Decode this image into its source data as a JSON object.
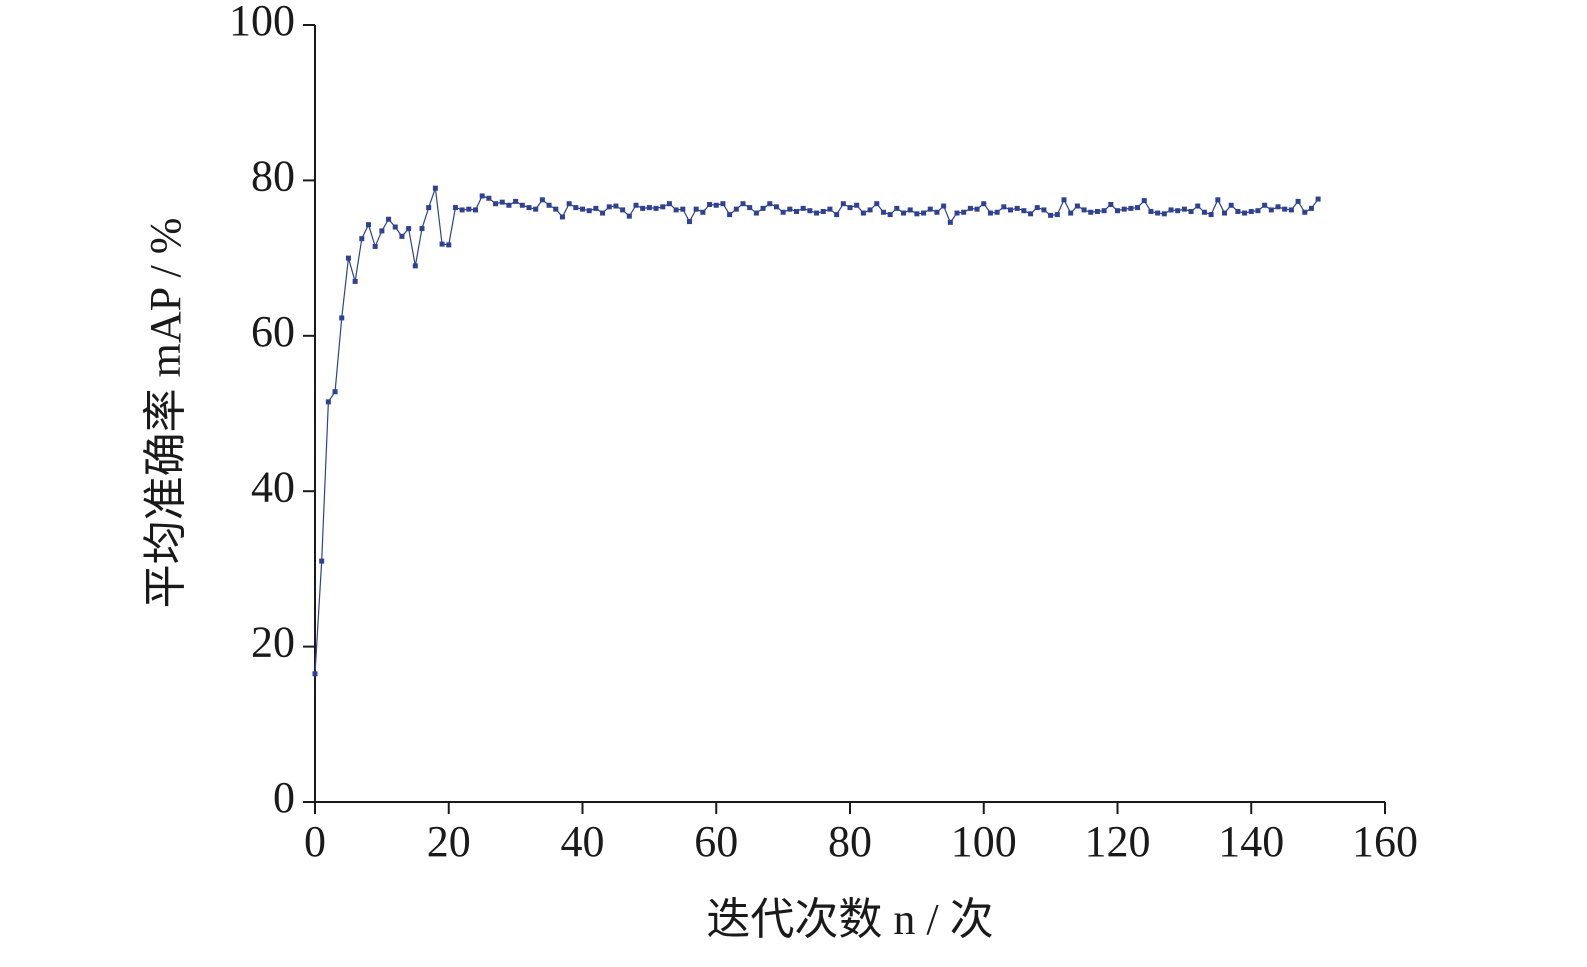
{
  "chart_data": {
    "type": "line",
    "x_label": "迭代次数 n / 次",
    "y_label": "平均准确率 mAP / %",
    "color": "#2e4192",
    "xlim": [
      0,
      160
    ],
    "xticks": [
      0,
      20,
      40,
      60,
      80,
      100,
      120,
      140,
      160
    ],
    "ylim": [
      0,
      100
    ],
    "yticks": [
      0,
      20,
      40,
      60,
      80,
      100
    ],
    "x": [
      0,
      1,
      2,
      3,
      4,
      5,
      6,
      7,
      8,
      9,
      10,
      11,
      12,
      13,
      14,
      15,
      16,
      17,
      18,
      19,
      20,
      21,
      22,
      23,
      24,
      25,
      26,
      27,
      28,
      29,
      30,
      31,
      32,
      33,
      34,
      35,
      36,
      37,
      38,
      39,
      40,
      41,
      42,
      43,
      44,
      45,
      46,
      47,
      48,
      49,
      50,
      51,
      52,
      53,
      54,
      55,
      56,
      57,
      58,
      59,
      60,
      61,
      62,
      63,
      64,
      65,
      66,
      67,
      68,
      69,
      70,
      71,
      72,
      73,
      74,
      75,
      76,
      77,
      78,
      79,
      80,
      81,
      82,
      83,
      84,
      85,
      86,
      87,
      88,
      89,
      90,
      91,
      92,
      93,
      94,
      95,
      96,
      97,
      98,
      99,
      100,
      101,
      102,
      103,
      104,
      105,
      106,
      107,
      108,
      109,
      110,
      111,
      112,
      113,
      114,
      115,
      116,
      117,
      118,
      119,
      120,
      121,
      122,
      123,
      124,
      125,
      126,
      127,
      128,
      129,
      130,
      131,
      132,
      133,
      134,
      135,
      136,
      137,
      138,
      139,
      140,
      141,
      142,
      143,
      144,
      145,
      146,
      147,
      148,
      149,
      150
    ],
    "values": [
      16.5,
      31,
      51.5,
      52.8,
      62.3,
      70,
      67,
      72.5,
      74.3,
      71.5,
      73.5,
      75,
      74,
      72.8,
      73.8,
      69,
      73.8,
      76.5,
      79,
      71.8,
      71.7,
      76.5,
      76.2,
      76.3,
      76.2,
      78,
      77.7,
      77,
      77.2,
      76.8,
      77.3,
      76.8,
      76.5,
      76.3,
      77.5,
      76.8,
      76.3,
      75.3,
      77,
      76.5,
      76.3,
      76.1,
      76.4,
      75.8,
      76.6,
      76.7,
      76.2,
      75.4,
      76.8,
      76.4,
      76.5,
      76.4,
      76.6,
      77,
      76.2,
      76.3,
      74.7,
      76.3,
      75.9,
      76.9,
      76.8,
      77,
      75.6,
      76.3,
      77,
      76.5,
      75.8,
      76.4,
      77,
      76.6,
      75.9,
      76.3,
      76,
      76.4,
      76.1,
      75.8,
      76,
      76.3,
      75.6,
      77,
      76.5,
      76.8,
      75.8,
      76.2,
      77,
      75.9,
      75.6,
      76.4,
      75.8,
      76.2,
      75.7,
      75.8,
      76.3,
      75.9,
      76.7,
      74.6,
      75.8,
      75.9,
      76.4,
      76.3,
      77,
      75.8,
      75.9,
      76.6,
      76.2,
      76.4,
      76.1,
      75.7,
      76.5,
      76.2,
      75.5,
      75.6,
      77.5,
      75.8,
      76.7,
      76.2,
      75.9,
      76,
      76.1,
      76.9,
      76.1,
      76.3,
      76.4,
      76.5,
      77.4,
      76,
      75.8,
      75.7,
      76.2,
      76.1,
      76.3,
      76,
      76.7,
      75.9,
      75.6,
      77.5,
      75.8,
      76.8,
      76,
      75.8,
      76,
      76.1,
      76.8,
      76.2,
      76.6,
      76.3,
      76.2,
      77.3,
      75.9,
      76.4,
      77.6
    ]
  }
}
